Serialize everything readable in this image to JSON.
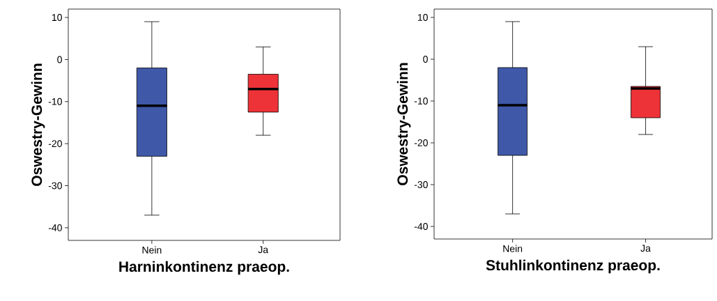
{
  "chart_data": [
    {
      "type": "box",
      "xlabel": "Harninkontinenz praeop.",
      "ylabel": "Oswestry-Gewinn",
      "categories": [
        "Nein",
        "Ja"
      ],
      "colors": [
        "#3f58a8",
        "#ee3338"
      ],
      "boxes": [
        {
          "low": -37,
          "q1": -23,
          "median": -11,
          "q3": -2,
          "high": 9
        },
        {
          "low": -18,
          "q1": -12.5,
          "median": -7,
          "q3": -3.5,
          "high": 3
        }
      ],
      "ylim": [
        -43,
        12
      ],
      "yticks": [
        10,
        0,
        -10,
        -20,
        -30,
        -40
      ]
    },
    {
      "type": "box",
      "xlabel": "Stuhlinkontinenz praeop.",
      "ylabel": "Oswestry-Gewinn",
      "categories": [
        "Nein",
        "Ja"
      ],
      "colors": [
        "#3f58a8",
        "#ee3338"
      ],
      "boxes": [
        {
          "low": -37,
          "q1": -23,
          "median": -11,
          "q3": -2,
          "high": 9
        },
        {
          "low": -18,
          "q1": -14,
          "median": -7,
          "q3": -6.5,
          "high": 3
        }
      ],
      "ylim": [
        -43,
        12
      ],
      "yticks": [
        10,
        0,
        -10,
        -20,
        -30,
        -40
      ]
    }
  ]
}
